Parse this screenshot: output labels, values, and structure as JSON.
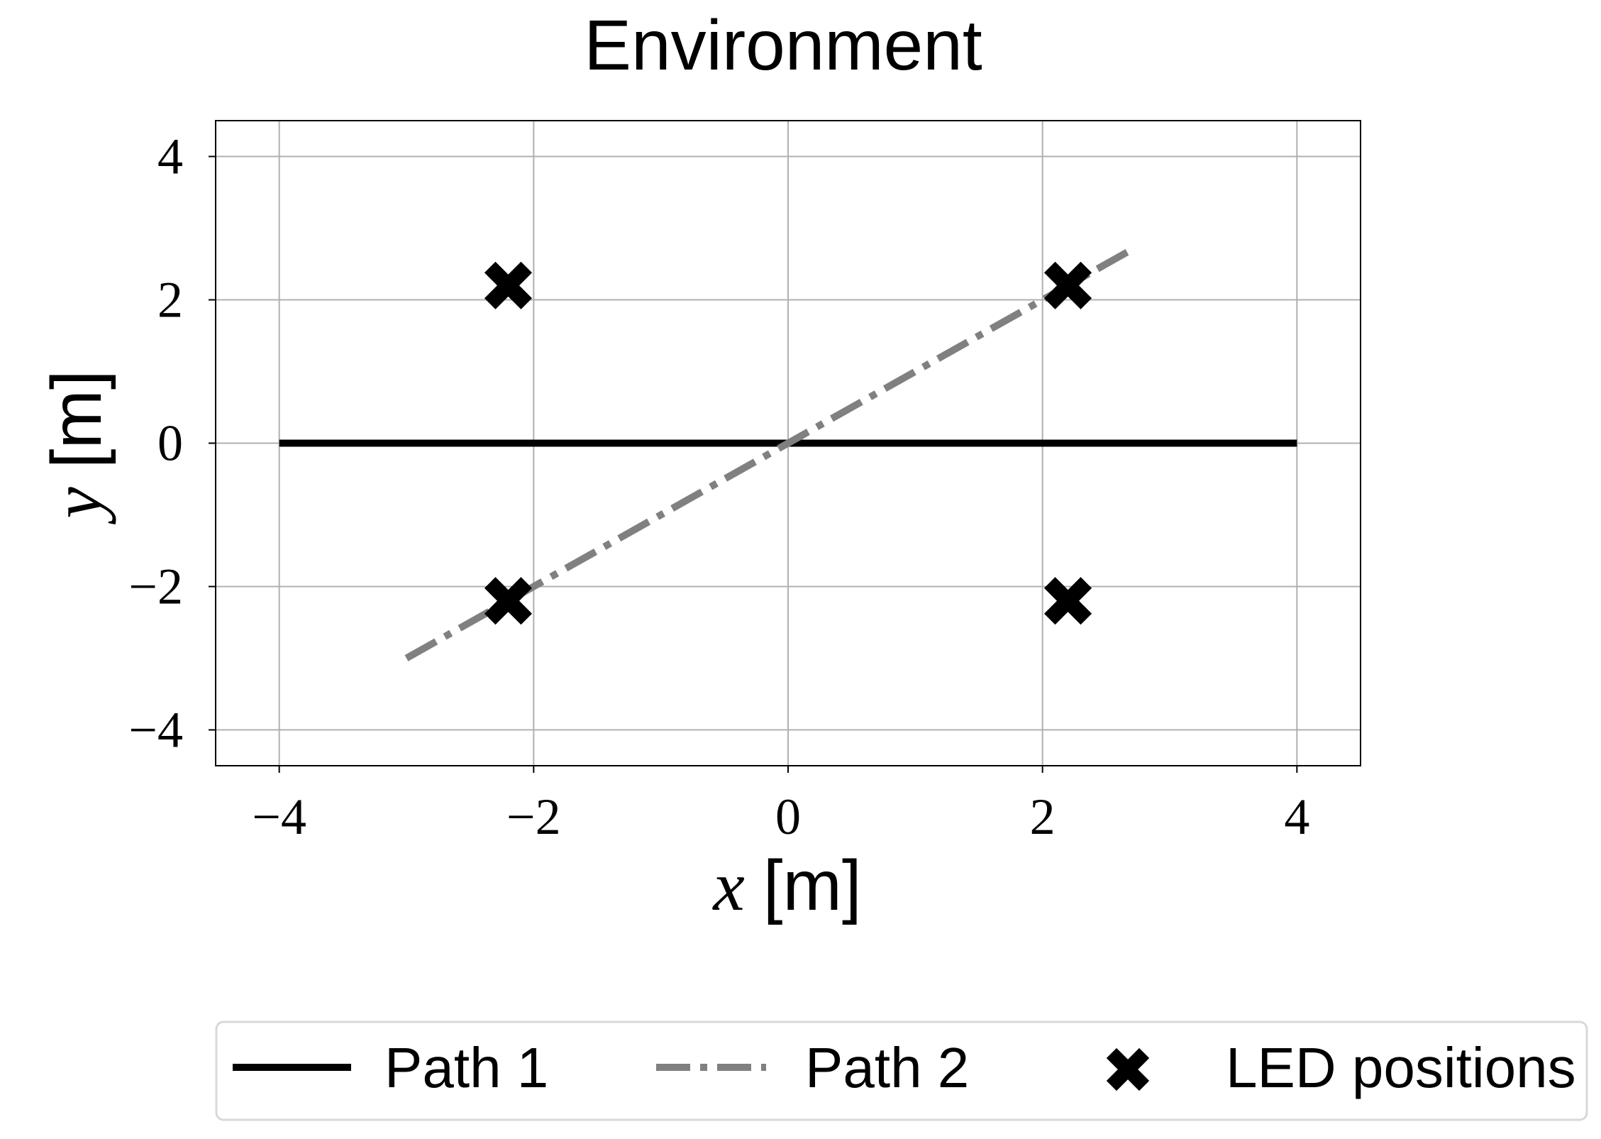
{
  "chart_data": {
    "type": "line",
    "title": "Environment",
    "xlabel": {
      "var": "x",
      "unit": "[m]"
    },
    "ylabel": {
      "var": "y",
      "unit": "[m]"
    },
    "xlim": [
      -4.5,
      4.5
    ],
    "ylim": [
      -4.5,
      4.5
    ],
    "xticks": [
      -4,
      -2,
      0,
      2,
      4
    ],
    "yticks": [
      -4,
      -2,
      0,
      2,
      4
    ],
    "xtick_labels": [
      "−4",
      "−2",
      "0",
      "2",
      "4"
    ],
    "ytick_labels": [
      "−4",
      "−2",
      "0",
      "2",
      "4"
    ],
    "grid": true,
    "legend_position": "bottom, outside the plot",
    "series": [
      {
        "name": "Path 1",
        "style": "solid",
        "color": "#000000",
        "x": [
          -4,
          4
        ],
        "y": [
          0,
          0
        ]
      },
      {
        "name": "Path 2",
        "style": "dashdot",
        "color": "#808080",
        "x": [
          -3,
          2.7
        ],
        "y": [
          -3,
          2.7
        ]
      }
    ],
    "markers": {
      "name": "LED positions",
      "color": "#000000",
      "x": [
        -2.2,
        2.2,
        -2.2,
        2.2
      ],
      "y": [
        2.2,
        2.2,
        -2.2,
        -2.2
      ]
    }
  }
}
